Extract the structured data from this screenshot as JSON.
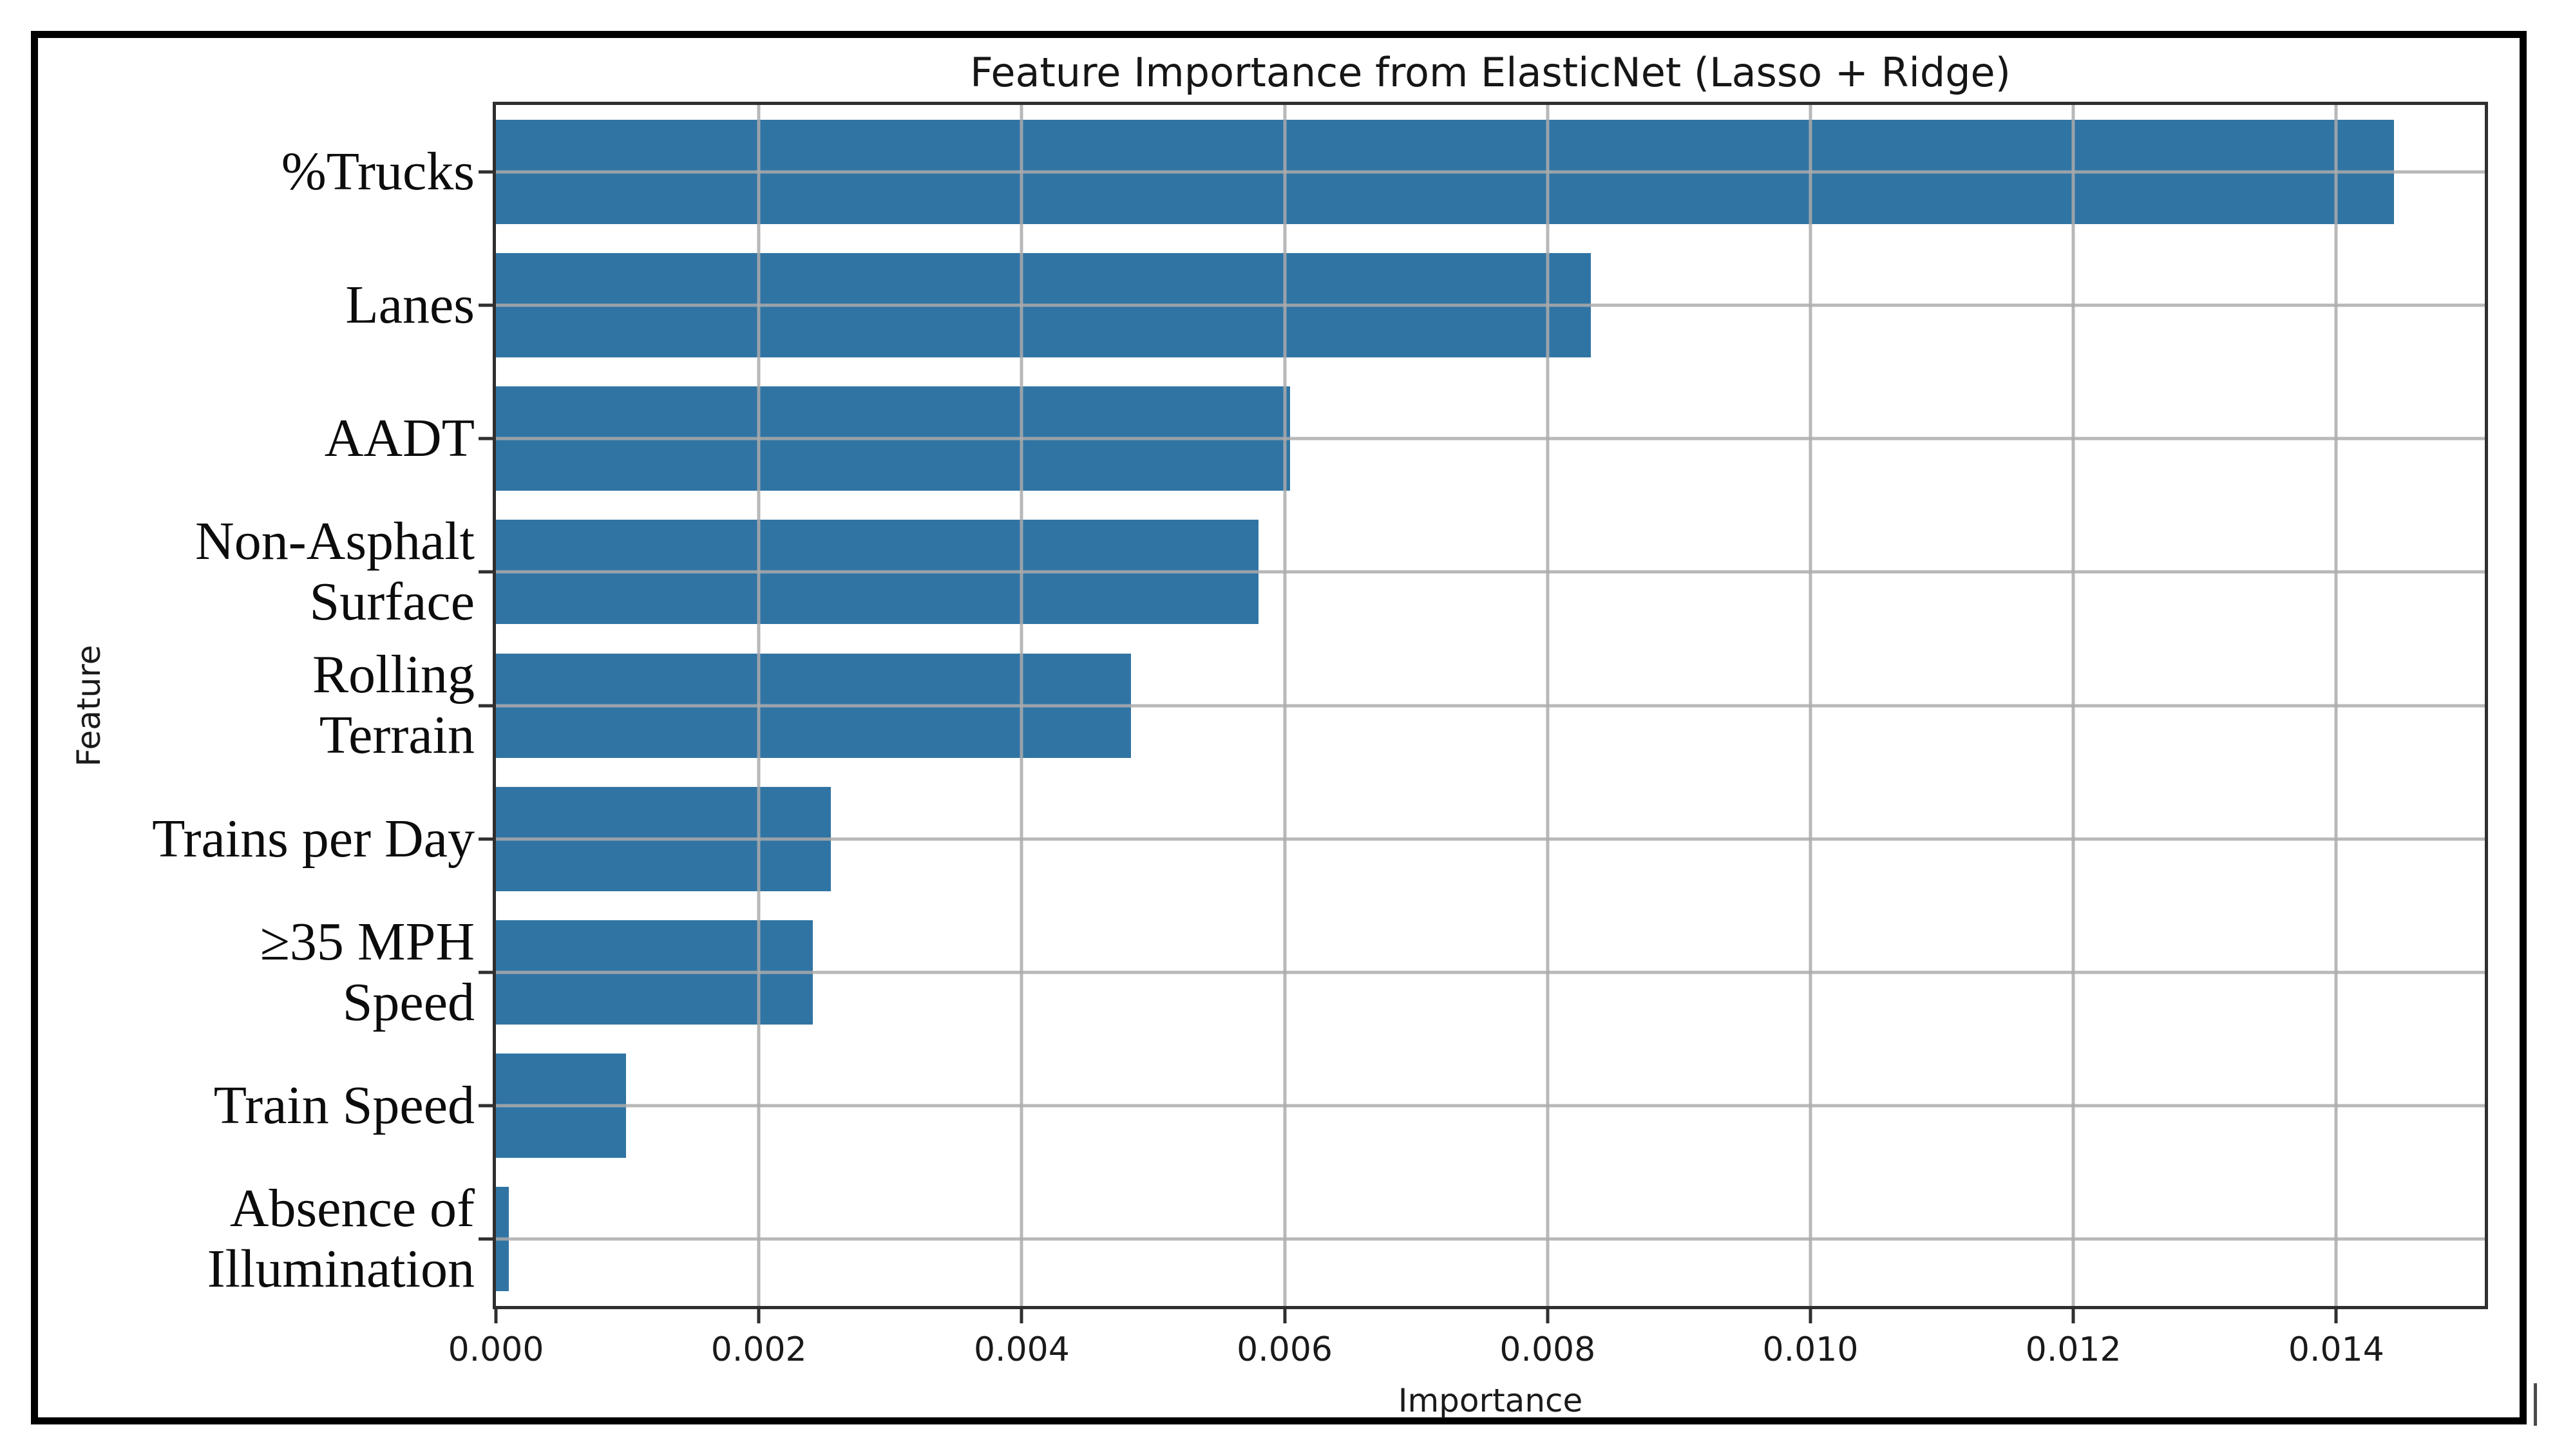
{
  "page": {
    "background": "#ffffff",
    "outer_border_color": "#000000"
  },
  "chart_data": {
    "type": "bar",
    "orientation": "horizontal",
    "title": "Feature Importance from ElasticNet (Lasso + Ridge)",
    "xlabel": "Importance",
    "ylabel": "Feature",
    "categories": [
      "%Trucks",
      "Lanes",
      "AADT",
      "Non-Asphalt\nSurface",
      "Rolling\nTerrain",
      "Trains per Day",
      "≥35 MPH\nSpeed",
      "Train Speed",
      "Absence of\nIllumination"
    ],
    "values": [
      0.01444,
      0.00833,
      0.00604,
      0.0058,
      0.00483,
      0.00255,
      0.00241,
      0.00099,
      0.0001
    ],
    "xticks": [
      0,
      0.002,
      0.004,
      0.006,
      0.008,
      0.01,
      0.012,
      0.014
    ],
    "xtick_labels": [
      "0.000",
      "0.002",
      "0.004",
      "0.006",
      "0.008",
      "0.010",
      "0.012",
      "0.014"
    ],
    "xlim": [
      0,
      0.01513
    ],
    "bar_color": "#3074A4",
    "grid": true,
    "grid_color": "#ababab",
    "spine_color": "#2f2f2f",
    "legend_position": "none"
  }
}
